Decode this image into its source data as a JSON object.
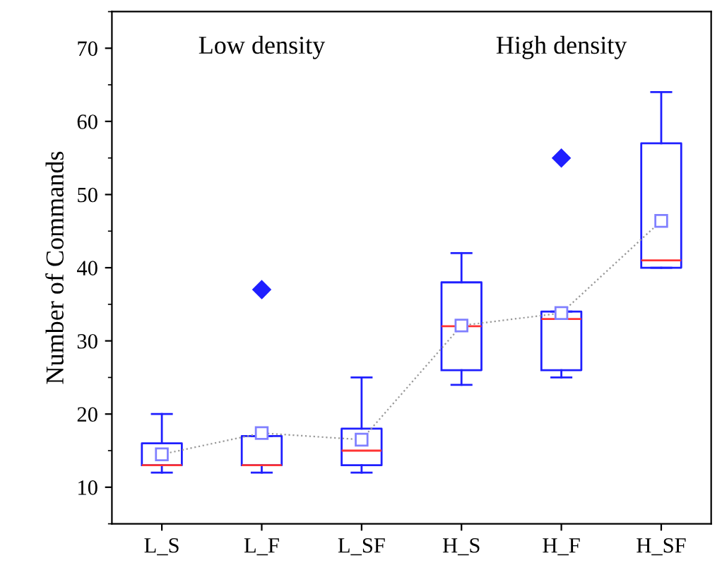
{
  "chart_data": {
    "type": "box",
    "ylabel": "Number of Commands",
    "categories": [
      "L_S",
      "L_F",
      "L_SF",
      "H_S",
      "H_F",
      "H_SF"
    ],
    "boxes": [
      {
        "low": 12,
        "q1": 13,
        "median": 13,
        "q3": 16,
        "high": 20
      },
      {
        "low": 12,
        "q1": 13,
        "median": 13,
        "q3": 17,
        "high": 17,
        "outliers": [
          37
        ]
      },
      {
        "low": 12,
        "q1": 13,
        "median": 15,
        "q3": 18,
        "high": 25
      },
      {
        "low": 24,
        "q1": 26,
        "median": 32,
        "q3": 38,
        "high": 42
      },
      {
        "low": 25,
        "q1": 26,
        "median": 33,
        "q3": 34,
        "high": 34,
        "outliers": [
          55
        ]
      },
      {
        "low": 40,
        "q1": 40,
        "median": 41,
        "q3": 57,
        "high": 64
      }
    ],
    "color": "#1f1fff",
    "series": [
      {
        "type": "line",
        "color": "#999999",
        "marker": "square",
        "line_style": "dotted",
        "values": [
          14.5,
          17.4,
          16.5,
          32.1,
          33.8,
          46.4
        ]
      }
    ],
    "annotations": [
      "Low density",
      "High density"
    ],
    "ylim": [
      5,
      75
    ],
    "yticks": [
      10,
      20,
      30,
      40,
      50,
      60,
      70
    ],
    "grid": false
  }
}
